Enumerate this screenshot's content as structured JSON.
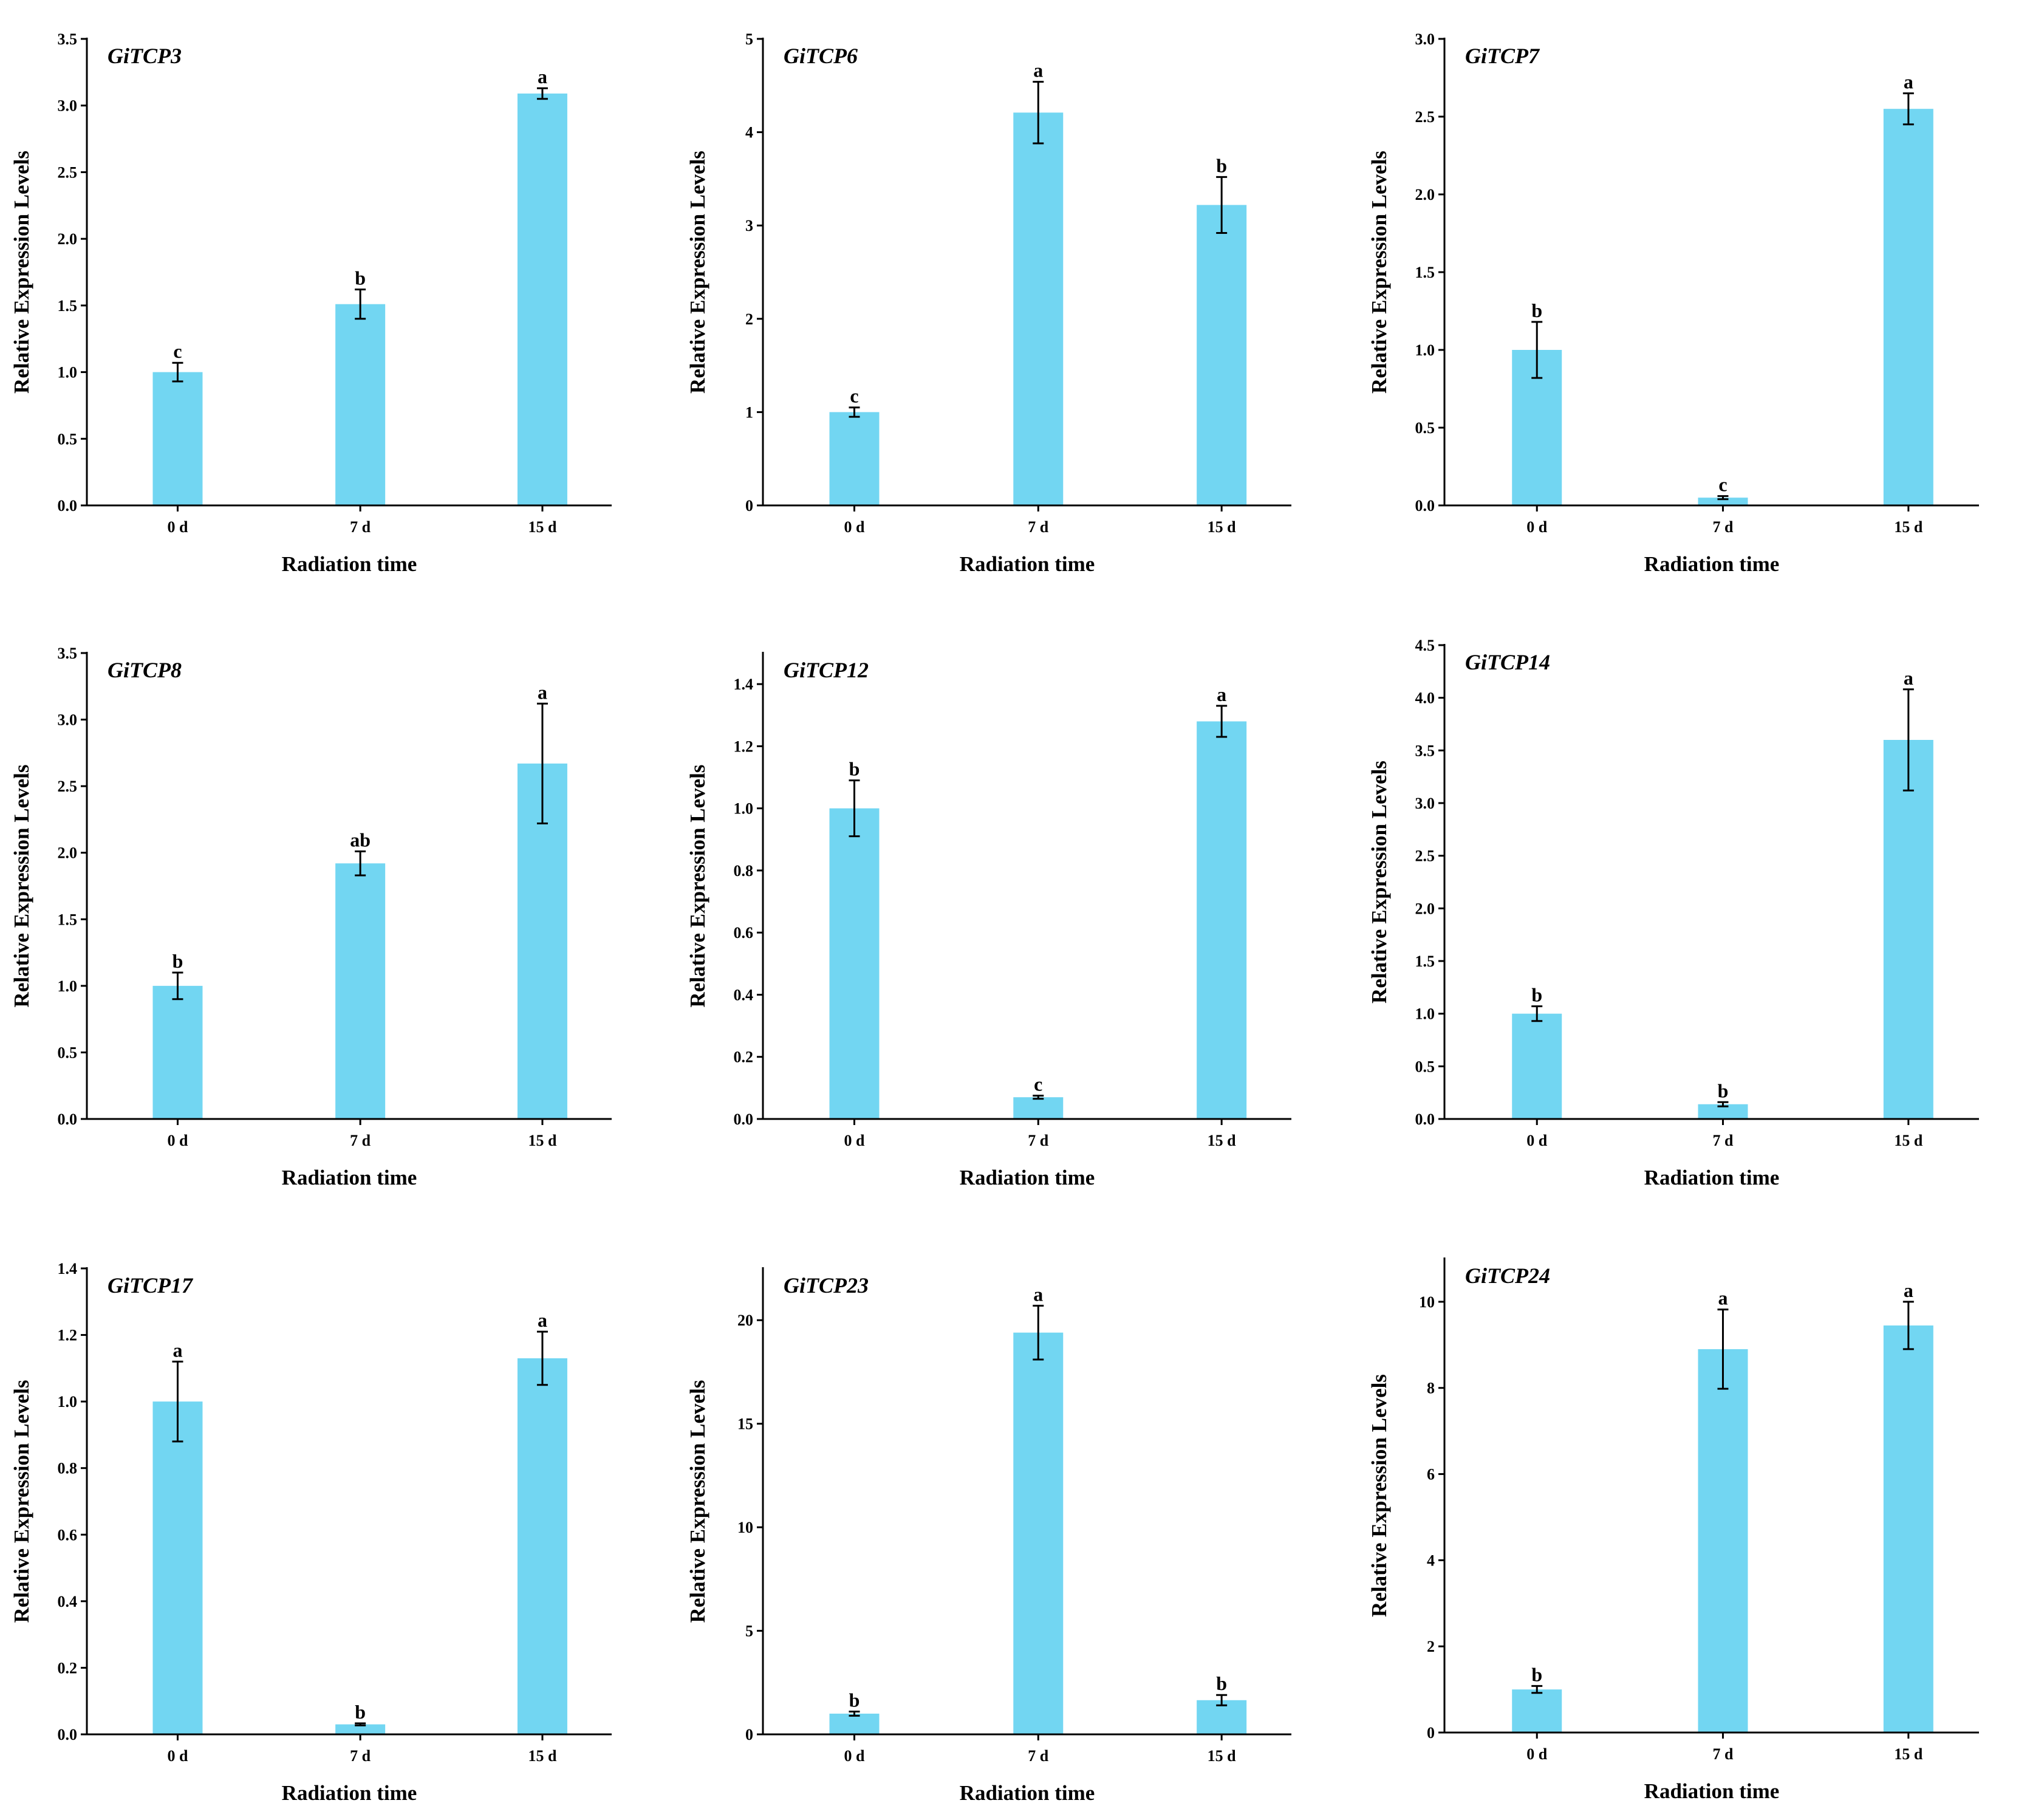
{
  "colors": {
    "bar": "#72D6F2",
    "axis": "#000000"
  },
  "chart_data": [
    {
      "type": "bar",
      "title": "GiTCP3",
      "xlabel": "Radiation time",
      "ylabel": "Relative Expression Levels",
      "categories": [
        "0 d",
        "7 d",
        "15 d"
      ],
      "values": [
        1.0,
        1.51,
        3.09
      ],
      "errors": [
        0.07,
        0.11,
        0.04
      ],
      "significance": [
        "c",
        "b",
        "a"
      ],
      "ylim": [
        0,
        3.5
      ],
      "yticks": [
        "0.0",
        "0.5",
        "1.0",
        "1.5",
        "2.0",
        "2.5",
        "3.0",
        "3.5"
      ]
    },
    {
      "type": "bar",
      "title": "GiTCP6",
      "xlabel": "Radiation time",
      "ylabel": "Relative Expression Levels",
      "categories": [
        "0 d",
        "7 d",
        "15 d"
      ],
      "values": [
        1.0,
        4.21,
        3.22
      ],
      "errors": [
        0.05,
        0.33,
        0.3
      ],
      "significance": [
        "c",
        "a",
        "b"
      ],
      "ylim": [
        0,
        5
      ],
      "yticks": [
        "0",
        "1",
        "2",
        "3",
        "4",
        "5"
      ]
    },
    {
      "type": "bar",
      "title": "GiTCP7",
      "xlabel": "Radiation time",
      "ylabel": "Relative Expression Levels",
      "categories": [
        "0 d",
        "7 d",
        "15 d"
      ],
      "values": [
        1.0,
        0.05,
        2.55
      ],
      "errors": [
        0.18,
        0.01,
        0.1
      ],
      "significance": [
        "b",
        "c",
        "a"
      ],
      "ylim": [
        0,
        3.0
      ],
      "yticks": [
        "0.0",
        "0.5",
        "1.0",
        "1.5",
        "2.0",
        "2.5",
        "3.0"
      ]
    },
    {
      "type": "bar",
      "title": "GiTCP8",
      "xlabel": "Radiation time",
      "ylabel": "Relative Expression Levels",
      "categories": [
        "0 d",
        "7 d",
        "15 d"
      ],
      "values": [
        1.0,
        1.92,
        2.67
      ],
      "errors": [
        0.1,
        0.09,
        0.45
      ],
      "significance": [
        "b",
        "ab",
        "a"
      ],
      "ylim": [
        0,
        3.5
      ],
      "yticks": [
        "0.0",
        "0.5",
        "1.0",
        "1.5",
        "2.0",
        "2.5",
        "3.0",
        "3.5"
      ]
    },
    {
      "type": "bar",
      "title": "GiTCP12",
      "xlabel": "Radiation time",
      "ylabel": "Relative Expression Levels",
      "categories": [
        "0 d",
        "7 d",
        "15 d"
      ],
      "values": [
        1.0,
        0.07,
        1.28
      ],
      "errors": [
        0.09,
        0.005,
        0.05
      ],
      "significance": [
        "b",
        "c",
        "a"
      ],
      "ylim": [
        0,
        1.5
      ],
      "yticks": [
        "0.0",
        "0.2",
        "0.4",
        "0.6",
        "0.8",
        "1.0",
        "1.2",
        "1.4"
      ]
    },
    {
      "type": "bar",
      "title": "GiTCP14",
      "xlabel": "Radiation time",
      "ylabel": "Relative Expression Levels",
      "categories": [
        "0 d",
        "7 d",
        "15 d"
      ],
      "values": [
        1.0,
        0.14,
        3.6
      ],
      "errors": [
        0.07,
        0.02,
        0.48
      ],
      "significance": [
        "b",
        "b",
        "a"
      ],
      "ylim": [
        0,
        4.5
      ],
      "yticks": [
        "0.0",
        "0.5",
        "1.0",
        "1.5",
        "2.0",
        "2.5",
        "3.0",
        "3.5",
        "4.0",
        "4.5"
      ]
    },
    {
      "type": "bar",
      "title": "GiTCP17",
      "xlabel": "Radiation time",
      "ylabel": "Relative Expression Levels",
      "categories": [
        "0 d",
        "7 d",
        "15 d"
      ],
      "values": [
        1.0,
        0.03,
        1.13
      ],
      "errors": [
        0.12,
        0.003,
        0.08
      ],
      "significance": [
        "a",
        "b",
        "a"
      ],
      "ylim": [
        0,
        1.4
      ],
      "yticks": [
        "0.0",
        "0.2",
        "0.4",
        "0.6",
        "0.8",
        "1.0",
        "1.2",
        "1.4"
      ]
    },
    {
      "type": "bar",
      "title": "GiTCP23",
      "xlabel": "Radiation time",
      "ylabel": "Relative Expression Levels",
      "categories": [
        "0 d",
        "7 d",
        "15 d"
      ],
      "values": [
        1.0,
        19.4,
        1.65
      ],
      "errors": [
        0.1,
        1.3,
        0.25
      ],
      "significance": [
        "b",
        "a",
        "b"
      ],
      "ylim": [
        0,
        22.5
      ],
      "yticks": [
        "0",
        "5",
        "10",
        "15",
        "20"
      ]
    },
    {
      "type": "bar",
      "title": "GiTCP24",
      "xlabel": "Radiation time",
      "ylabel": "Relative Expression Levels",
      "categories": [
        "0 d",
        "7 d",
        "15 d"
      ],
      "values": [
        1.0,
        8.9,
        9.45
      ],
      "errors": [
        0.08,
        0.92,
        0.55
      ],
      "significance": [
        "b",
        "a",
        "a"
      ],
      "ylim": [
        0,
        11
      ],
      "yticks": [
        "0",
        "2",
        "4",
        "6",
        "8",
        "10"
      ]
    }
  ]
}
